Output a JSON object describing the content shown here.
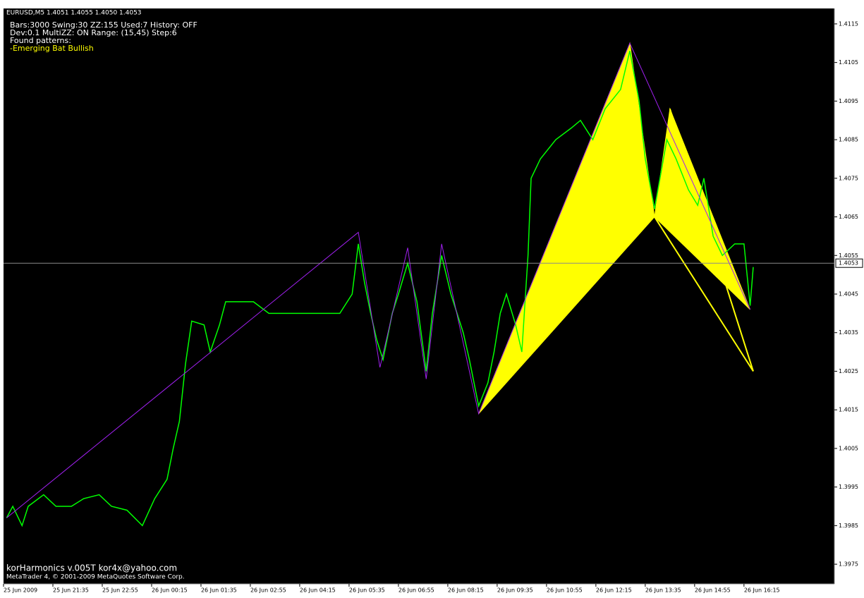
{
  "window_title": "EURUSD,M5  1.4051 1.4055 1.4050 1.4053",
  "info_lines": [
    "Bars:3000  Swing:30  ZZ:155  Used:7  History: OFF",
    "Dev:0.1  MultiZZ: ON  Range: (15,45)  Step:6",
    "Found patterns:"
  ],
  "found_pattern": "-Emerging Bat Bullish",
  "footer": [
    "korHarmonics v.005T kor4x@yahoo.com",
    "MetaTrader 4, © 2001-2009 MetaQuotes Software Corp."
  ],
  "chart_data": {
    "type": "line",
    "ylim": [
      1.39699,
      1.4119
    ],
    "yticks": [
      1.3975,
      1.3985,
      1.3995,
      1.4005,
      1.4015,
      1.4025,
      1.4035,
      1.4045,
      1.4055,
      1.4065,
      1.4075,
      1.4085,
      1.4095,
      1.4105,
      1.4115
    ],
    "xlim": [
      0,
      269.3
    ],
    "xticks": [
      {
        "value": 0,
        "label": "25 Jun 2009"
      },
      {
        "value": 16,
        "label": "25 Jun 21:35"
      },
      {
        "value": 32,
        "label": "25 Jun 22:55"
      },
      {
        "value": 48,
        "label": "26 Jun 00:15"
      },
      {
        "value": 64,
        "label": "26 Jun 01:35"
      },
      {
        "value": 80,
        "label": "26 Jun 02:55"
      },
      {
        "value": 96,
        "label": "26 Jun 04:15"
      },
      {
        "value": 112,
        "label": "26 Jun 05:35"
      },
      {
        "value": 128,
        "label": "26 Jun 06:55"
      },
      {
        "value": 144,
        "label": "26 Jun 08:15"
      },
      {
        "value": 160,
        "label": "26 Jun 09:35"
      },
      {
        "value": 176,
        "label": "26 Jun 10:55"
      },
      {
        "value": 192,
        "label": "26 Jun 12:15"
      },
      {
        "value": 208,
        "label": "26 Jun 13:35"
      },
      {
        "value": 224,
        "label": "26 Jun 14:55"
      },
      {
        "value": 240,
        "label": "26 Jun 16:15"
      }
    ],
    "current_price": 1.4053,
    "price": {
      "color": "#00ff00",
      "x": [
        1,
        3,
        6,
        8,
        13,
        17,
        22,
        26,
        31,
        35,
        40,
        45,
        49,
        53,
        55,
        57,
        59,
        61,
        65,
        67,
        70,
        72,
        77,
        81,
        86,
        90,
        95,
        99,
        104,
        109,
        113,
        115,
        117,
        119,
        121,
        123,
        126,
        128,
        131,
        134,
        137,
        139,
        142,
        145,
        149,
        151,
        154,
        157,
        159,
        161,
        163,
        166,
        168,
        170,
        171,
        174,
        179,
        184,
        187,
        191,
        195,
        200,
        203,
        206,
        208,
        211,
        215,
        218,
        222,
        225,
        227,
        230,
        233,
        237,
        240,
        242,
        243
      ],
      "values": [
        1.3987,
        1.399,
        1.3985,
        1.399,
        1.3993,
        1.399,
        1.399,
        1.3992,
        1.3993,
        1.399,
        1.3989,
        1.3985,
        1.3992,
        1.3997,
        1.4005,
        1.4012,
        1.4027,
        1.4038,
        1.4037,
        1.403,
        1.4037,
        1.4043,
        1.4043,
        1.4043,
        1.404,
        1.404,
        1.404,
        1.404,
        1.404,
        1.404,
        1.4045,
        1.4058,
        1.4048,
        1.404,
        1.4033,
        1.4028,
        1.404,
        1.4045,
        1.4053,
        1.4043,
        1.4025,
        1.404,
        1.4055,
        1.4045,
        1.4035,
        1.4028,
        1.4016,
        1.4022,
        1.403,
        1.404,
        1.4045,
        1.4037,
        1.403,
        1.4055,
        1.4075,
        1.408,
        1.4085,
        1.4088,
        1.409,
        1.4085,
        1.4093,
        1.4098,
        1.4108,
        1.4095,
        1.408,
        1.4067,
        1.4085,
        1.408,
        1.4072,
        1.4068,
        1.4075,
        1.406,
        1.4055,
        1.4058,
        1.4058,
        1.4042,
        1.4052
      ]
    },
    "zigzag": {
      "color": "#a020f0",
      "x": [
        1,
        115,
        122,
        131,
        137,
        142,
        154,
        203,
        242
      ],
      "values": [
        1.3987,
        1.4061,
        1.4026,
        1.4057,
        1.4023,
        1.4058,
        1.4014,
        1.411,
        1.4041
      ]
    },
    "pattern": {
      "color": "#ffff00",
      "x": [
        154,
        203,
        211,
        216,
        242
      ],
      "values": [
        1.4014,
        1.411,
        1.4065,
        1.4093,
        1.4041
      ],
      "projected_x": 243,
      "projected_value": 1.4025
    }
  }
}
